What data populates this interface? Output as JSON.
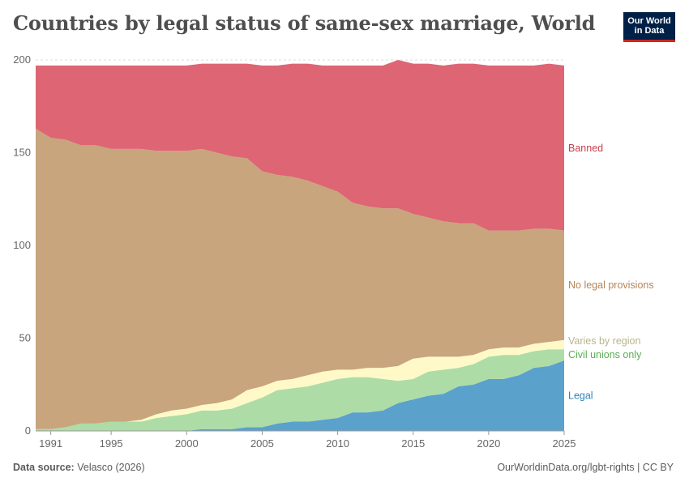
{
  "header": {
    "title": "Countries by legal status of same-sex marriage, World",
    "logo_line1": "Our World",
    "logo_line2": "in Data"
  },
  "footer": {
    "source_label": "Data source:",
    "source_value": "Velasco (2026)",
    "url": "OurWorldinData.org/lgbt-rights | CC BY"
  },
  "chart_data": {
    "type": "area",
    "stacked": true,
    "title": "Countries by legal status of same-sex marriage, World",
    "xlabel": "",
    "ylabel": "",
    "xlim": [
      1990,
      2025
    ],
    "ylim": [
      0,
      200
    ],
    "x_ticks": [
      1991,
      1995,
      2000,
      2005,
      2010,
      2015,
      2020,
      2025
    ],
    "y_ticks": [
      0,
      50,
      100,
      150,
      200
    ],
    "grid": "horizontal",
    "legend": "right-inline",
    "x": [
      1990,
      1991,
      1992,
      1993,
      1994,
      1995,
      1996,
      1997,
      1998,
      1999,
      2000,
      2001,
      2002,
      2003,
      2004,
      2005,
      2006,
      2007,
      2008,
      2009,
      2010,
      2011,
      2012,
      2013,
      2014,
      2015,
      2016,
      2017,
      2018,
      2019,
      2020,
      2021,
      2022,
      2023,
      2024,
      2025
    ],
    "series": [
      {
        "name": "Legal",
        "color": "#5aa1cc",
        "values": [
          0,
          0,
          0,
          0,
          0,
          0,
          0,
          0,
          0,
          0,
          0,
          1,
          1,
          1,
          2,
          2,
          4,
          5,
          5,
          6,
          7,
          10,
          10,
          11,
          15,
          17,
          19,
          20,
          24,
          25,
          28,
          28,
          30,
          34,
          35,
          38
        ]
      },
      {
        "name": "Civil unions only",
        "color": "#aedca6",
        "values": [
          1,
          1,
          2,
          4,
          4,
          5,
          5,
          5,
          7,
          8,
          9,
          10,
          10,
          11,
          13,
          16,
          18,
          18,
          19,
          20,
          21,
          19,
          19,
          17,
          12,
          11,
          13,
          13,
          10,
          11,
          12,
          13,
          11,
          9,
          9,
          6
        ]
      },
      {
        "name": "Varies by region",
        "color": "#fff9c8",
        "values": [
          0,
          0,
          0,
          0,
          0,
          0,
          0,
          1,
          2,
          3,
          3,
          3,
          4,
          5,
          7,
          6,
          5,
          5,
          6,
          6,
          5,
          4,
          5,
          6,
          8,
          11,
          8,
          7,
          6,
          5,
          4,
          4,
          4,
          4,
          4,
          5
        ]
      },
      {
        "name": "No legal provisions",
        "color": "#c8a57d",
        "values": [
          162,
          157,
          155,
          150,
          150,
          147,
          147,
          146,
          142,
          140,
          139,
          138,
          135,
          131,
          125,
          116,
          111,
          109,
          105,
          100,
          96,
          90,
          87,
          86,
          85,
          78,
          75,
          73,
          72,
          71,
          64,
          63,
          63,
          62,
          61,
          59
        ]
      },
      {
        "name": "Banned",
        "color": "#de6574",
        "values": [
          34,
          39,
          40,
          43,
          43,
          45,
          45,
          45,
          46,
          46,
          46,
          46,
          48,
          50,
          51,
          57,
          59,
          61,
          63,
          65,
          68,
          74,
          76,
          77,
          80,
          81,
          83,
          84,
          86,
          86,
          89,
          89,
          89,
          88,
          89,
          89
        ]
      }
    ],
    "label_colors": [
      "#2e84bd",
      "#5aad54",
      "#b9b58a",
      "#b4855a",
      "#cc3c4d"
    ]
  }
}
